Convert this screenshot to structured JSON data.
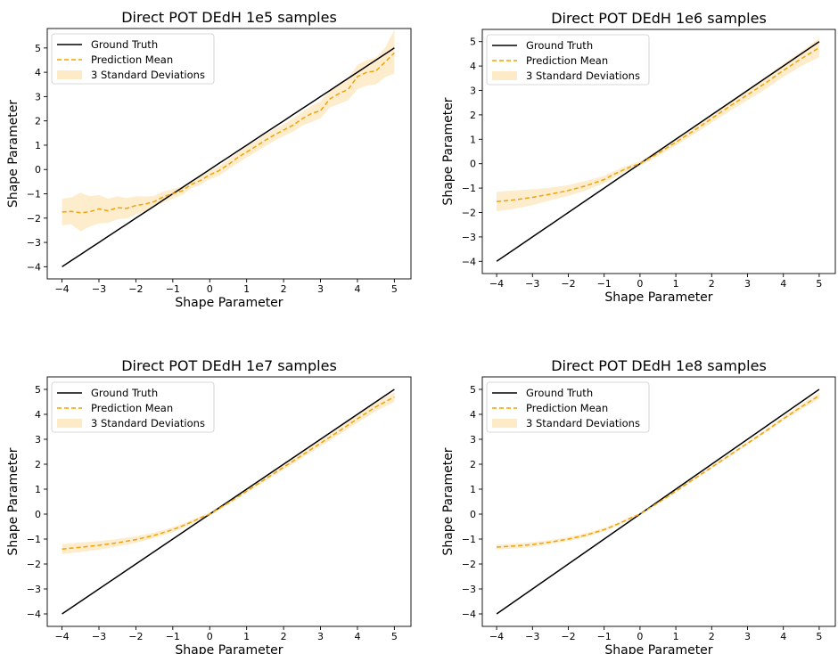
{
  "colors": {
    "ground_truth": "#000000",
    "prediction": "#f0a30a",
    "band": "#fdebc8",
    "frame": "#000000"
  },
  "chart_data": [
    {
      "type": "line",
      "title": "Direct POT DEdH 1e5 samples",
      "xlabel": "Shape Parameter",
      "ylabel": "Shape Parameter",
      "xlim": [
        -4.4,
        5.45
      ],
      "ylim": [
        -4.5,
        5.8
      ],
      "xticks": [
        -4,
        -3,
        -2,
        -1,
        0,
        1,
        2,
        3,
        4,
        5
      ],
      "yticks": [
        -4,
        -3,
        -2,
        -1,
        0,
        1,
        2,
        3,
        4,
        5
      ],
      "grid": false,
      "legend": {
        "position": "top-left",
        "entries": [
          "Ground Truth",
          "Prediction Mean",
          "3 Standard Deviations"
        ]
      },
      "x": [
        -4,
        -3.75,
        -3.5,
        -3.25,
        -3,
        -2.75,
        -2.5,
        -2.25,
        -2,
        -1.75,
        -1.5,
        -1.25,
        -1,
        -0.75,
        -0.5,
        -0.25,
        0,
        0.25,
        0.5,
        0.75,
        1,
        1.25,
        1.5,
        1.75,
        2,
        2.25,
        2.5,
        2.75,
        3,
        3.25,
        3.5,
        3.75,
        4,
        4.25,
        4.5,
        4.75,
        5
      ],
      "series": [
        {
          "name": "Ground Truth",
          "values": [
            -4,
            -3.75,
            -3.5,
            -3.25,
            -3,
            -2.75,
            -2.5,
            -2.25,
            -2,
            -1.75,
            -1.5,
            -1.25,
            -1,
            -0.75,
            -0.5,
            -0.25,
            0,
            0.25,
            0.5,
            0.75,
            1,
            1.25,
            1.5,
            1.75,
            2,
            2.25,
            2.5,
            2.75,
            3,
            3.25,
            3.5,
            3.75,
            4,
            4.25,
            4.5,
            4.75,
            5
          ]
        },
        {
          "name": "Prediction Mean",
          "values": [
            -1.75,
            -1.72,
            -1.78,
            -1.74,
            -1.62,
            -1.7,
            -1.57,
            -1.6,
            -1.48,
            -1.42,
            -1.32,
            -1.12,
            -1.0,
            -0.88,
            -0.62,
            -0.45,
            -0.22,
            -0.05,
            0.2,
            0.48,
            0.72,
            0.95,
            1.2,
            1.42,
            1.62,
            1.82,
            2.08,
            2.3,
            2.42,
            2.9,
            3.12,
            3.3,
            3.82,
            4.0,
            4.05,
            4.42,
            4.8
          ]
        },
        {
          "name": "3 Standard Deviations",
          "lower": [
            -2.3,
            -2.25,
            -2.55,
            -2.35,
            -2.22,
            -2.2,
            -2.05,
            -2.02,
            -1.85,
            -1.72,
            -1.55,
            -1.35,
            -1.2,
            -1.05,
            -0.78,
            -0.62,
            -0.4,
            -0.25,
            0.0,
            0.25,
            0.5,
            0.72,
            0.95,
            1.18,
            1.38,
            1.55,
            1.8,
            1.95,
            2.1,
            2.55,
            2.7,
            2.85,
            3.3,
            3.45,
            3.5,
            3.8,
            3.95
          ],
          "upper": [
            -1.2,
            -1.15,
            -0.95,
            -1.1,
            -1.05,
            -1.2,
            -1.1,
            -1.18,
            -1.1,
            -1.12,
            -1.08,
            -0.9,
            -0.8,
            -0.7,
            -0.45,
            -0.28,
            -0.05,
            0.15,
            0.4,
            0.7,
            0.95,
            1.18,
            1.45,
            1.66,
            1.86,
            2.1,
            2.36,
            2.62,
            2.8,
            3.25,
            3.52,
            3.75,
            4.3,
            4.5,
            4.6,
            5.0,
            5.75
          ]
        }
      ]
    },
    {
      "type": "line",
      "title": "Direct POT DEdH 1e6 samples",
      "xlabel": "Shape Parameter",
      "ylabel": "Shape Parameter",
      "xlim": [
        -4.4,
        5.45
      ],
      "ylim": [
        -4.5,
        5.5
      ],
      "xticks": [
        -4,
        -3,
        -2,
        -1,
        0,
        1,
        2,
        3,
        4,
        5
      ],
      "yticks": [
        -4,
        -3,
        -2,
        -1,
        0,
        1,
        2,
        3,
        4,
        5
      ],
      "grid": false,
      "legend": {
        "position": "top-left",
        "entries": [
          "Ground Truth",
          "Prediction Mean",
          "3 Standard Deviations"
        ]
      },
      "x": [
        -4,
        -3.5,
        -3,
        -2.5,
        -2,
        -1.5,
        -1,
        -0.75,
        -0.5,
        -0.25,
        0,
        0.5,
        1,
        1.5,
        2,
        2.5,
        3,
        3.5,
        4,
        4.5,
        5
      ],
      "series": [
        {
          "name": "Ground Truth",
          "values": [
            -4,
            -3.5,
            -3,
            -2.5,
            -2,
            -1.5,
            -1,
            -0.75,
            -0.5,
            -0.25,
            0,
            0.5,
            1,
            1.5,
            2,
            2.5,
            3,
            3.5,
            4,
            4.5,
            5
          ]
        },
        {
          "name": "Prediction Mean",
          "values": [
            -1.55,
            -1.48,
            -1.38,
            -1.25,
            -1.1,
            -0.9,
            -0.65,
            -0.45,
            -0.28,
            -0.12,
            0.0,
            0.42,
            0.88,
            1.35,
            1.85,
            2.35,
            2.82,
            3.3,
            3.82,
            4.3,
            4.75
          ]
        },
        {
          "name": "3 Standard Deviations",
          "lower": [
            -1.95,
            -1.85,
            -1.7,
            -1.5,
            -1.32,
            -1.1,
            -0.8,
            -0.6,
            -0.4,
            -0.22,
            -0.1,
            0.3,
            0.75,
            1.2,
            1.68,
            2.15,
            2.6,
            3.05,
            3.55,
            4.0,
            4.35
          ],
          "upper": [
            -1.15,
            -1.1,
            -1.05,
            -0.98,
            -0.88,
            -0.7,
            -0.5,
            -0.32,
            -0.16,
            -0.02,
            0.1,
            0.55,
            1.02,
            1.5,
            2.02,
            2.55,
            3.05,
            3.55,
            4.1,
            4.6,
            5.15
          ]
        }
      ]
    },
    {
      "type": "line",
      "title": "Direct POT DEdH 1e7 samples",
      "xlabel": "Shape Parameter",
      "ylabel": "Shape Parameter",
      "xlim": [
        -4.4,
        5.45
      ],
      "ylim": [
        -4.5,
        5.5
      ],
      "xticks": [
        -4,
        -3,
        -2,
        -1,
        0,
        1,
        2,
        3,
        4,
        5
      ],
      "yticks": [
        -4,
        -3,
        -2,
        -1,
        0,
        1,
        2,
        3,
        4,
        5
      ],
      "grid": false,
      "legend": {
        "position": "top-left",
        "entries": [
          "Ground Truth",
          "Prediction Mean",
          "3 Standard Deviations"
        ]
      },
      "x": [
        -4,
        -3.5,
        -3,
        -2.5,
        -2,
        -1.5,
        -1,
        -0.75,
        -0.5,
        -0.25,
        0,
        0.5,
        1,
        1.5,
        2,
        2.5,
        3,
        3.5,
        4,
        4.5,
        5
      ],
      "series": [
        {
          "name": "Ground Truth",
          "values": [
            -4,
            -3.5,
            -3,
            -2.5,
            -2,
            -1.5,
            -1,
            -0.75,
            -0.5,
            -0.25,
            0,
            0.5,
            1,
            1.5,
            2,
            2.5,
            3,
            3.5,
            4,
            4.5,
            5
          ]
        },
        {
          "name": "Prediction Mean",
          "values": [
            -1.4,
            -1.33,
            -1.25,
            -1.15,
            -1.02,
            -0.85,
            -0.62,
            -0.48,
            -0.32,
            -0.15,
            0.0,
            0.45,
            0.92,
            1.4,
            1.88,
            2.36,
            2.84,
            3.32,
            3.82,
            4.3,
            4.7
          ]
        },
        {
          "name": "3 Standard Deviations",
          "lower": [
            -1.6,
            -1.52,
            -1.42,
            -1.3,
            -1.15,
            -0.96,
            -0.72,
            -0.56,
            -0.4,
            -0.22,
            -0.06,
            0.38,
            0.85,
            1.32,
            1.78,
            2.25,
            2.72,
            3.18,
            3.66,
            4.12,
            4.5
          ],
          "upper": [
            -1.2,
            -1.14,
            -1.08,
            -1.0,
            -0.89,
            -0.74,
            -0.52,
            -0.4,
            -0.24,
            -0.08,
            0.06,
            0.52,
            0.99,
            1.48,
            1.98,
            2.47,
            2.96,
            3.46,
            3.98,
            4.48,
            4.9
          ]
        }
      ]
    },
    {
      "type": "line",
      "title": "Direct POT DEdH 1e8 samples",
      "xlabel": "Shape Parameter",
      "ylabel": "Shape Parameter",
      "xlim": [
        -4.4,
        5.45
      ],
      "ylim": [
        -4.5,
        5.5
      ],
      "xticks": [
        -4,
        -3,
        -2,
        -1,
        0,
        1,
        2,
        3,
        4,
        5
      ],
      "yticks": [
        -4,
        -3,
        -2,
        -1,
        0,
        1,
        2,
        3,
        4,
        5
      ],
      "grid": false,
      "legend": {
        "position": "top-left",
        "entries": [
          "Ground Truth",
          "Prediction Mean",
          "3 Standard Deviations"
        ]
      },
      "x": [
        -4,
        -3.5,
        -3,
        -2.5,
        -2,
        -1.5,
        -1,
        -0.75,
        -0.5,
        -0.25,
        0,
        0.5,
        1,
        1.5,
        2,
        2.5,
        3,
        3.5,
        4,
        4.5,
        5
      ],
      "series": [
        {
          "name": "Ground Truth",
          "values": [
            -4,
            -3.5,
            -3,
            -2.5,
            -2,
            -1.5,
            -1,
            -0.75,
            -0.5,
            -0.25,
            0,
            0.5,
            1,
            1.5,
            2,
            2.5,
            3,
            3.5,
            4,
            4.5,
            5
          ]
        },
        {
          "name": "Prediction Mean",
          "values": [
            -1.32,
            -1.28,
            -1.22,
            -1.12,
            -1.0,
            -0.84,
            -0.62,
            -0.48,
            -0.32,
            -0.15,
            0.0,
            0.45,
            0.92,
            1.4,
            1.88,
            2.36,
            2.84,
            3.32,
            3.82,
            4.3,
            4.75
          ]
        },
        {
          "name": "3 Standard Deviations",
          "lower": [
            -1.42,
            -1.38,
            -1.32,
            -1.2,
            -1.08,
            -0.92,
            -0.69,
            -0.54,
            -0.38,
            -0.2,
            -0.04,
            0.4,
            0.87,
            1.35,
            1.82,
            2.3,
            2.78,
            3.25,
            3.74,
            4.2,
            4.62
          ],
          "upper": [
            -1.22,
            -1.18,
            -1.12,
            -1.04,
            -0.92,
            -0.76,
            -0.55,
            -0.42,
            -0.26,
            -0.1,
            0.04,
            0.5,
            0.97,
            1.45,
            1.94,
            2.42,
            2.9,
            3.39,
            3.9,
            4.4,
            4.88
          ]
        }
      ]
    }
  ]
}
